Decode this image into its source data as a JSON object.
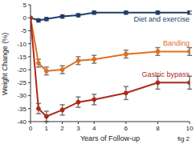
{
  "chart_data": {
    "type": "line",
    "x_label": "Years of Follow-up",
    "y_label": "Weight Change (%)",
    "annotation": "fig 2",
    "x": [
      0,
      0.5,
      1,
      2,
      3,
      4,
      6,
      8,
      10
    ],
    "xlim": [
      0,
      10
    ],
    "xticks": [
      0,
      1,
      2,
      3,
      4,
      6,
      8,
      10
    ],
    "ylim": [
      -40,
      5
    ],
    "yticks": [
      5,
      0,
      -5,
      -10,
      -15,
      -20,
      -25,
      -30,
      -35,
      -40
    ],
    "grid": false,
    "series": [
      {
        "name": "Diet and exercise",
        "color": "#1f3d6b",
        "marker": "circle",
        "values": [
          0,
          -1,
          -0.5,
          0.5,
          1,
          2,
          2,
          2,
          2
        ],
        "errors": [
          0,
          0.6,
          0.6,
          0.6,
          0.6,
          0.6,
          0.6,
          0.6,
          0.6
        ]
      },
      {
        "name": "Banding",
        "color": "#e0701f",
        "marker": "circle",
        "values": [
          0,
          -17.5,
          -20.5,
          -20,
          -16.5,
          -16,
          -14,
          -13,
          -13
        ],
        "errors": [
          0,
          1.5,
          1.5,
          1.5,
          1.5,
          1.5,
          1.5,
          1.5,
          1.5
        ]
      },
      {
        "name": "Gastric bypass",
        "color": "#b0281a",
        "marker": "circle",
        "values": [
          0,
          -35,
          -38,
          -35.5,
          -32.5,
          -31.5,
          -29,
          -25,
          -25
        ],
        "errors": [
          0,
          2,
          2,
          2,
          2,
          2,
          2.5,
          2.5,
          2.5
        ]
      }
    ]
  }
}
